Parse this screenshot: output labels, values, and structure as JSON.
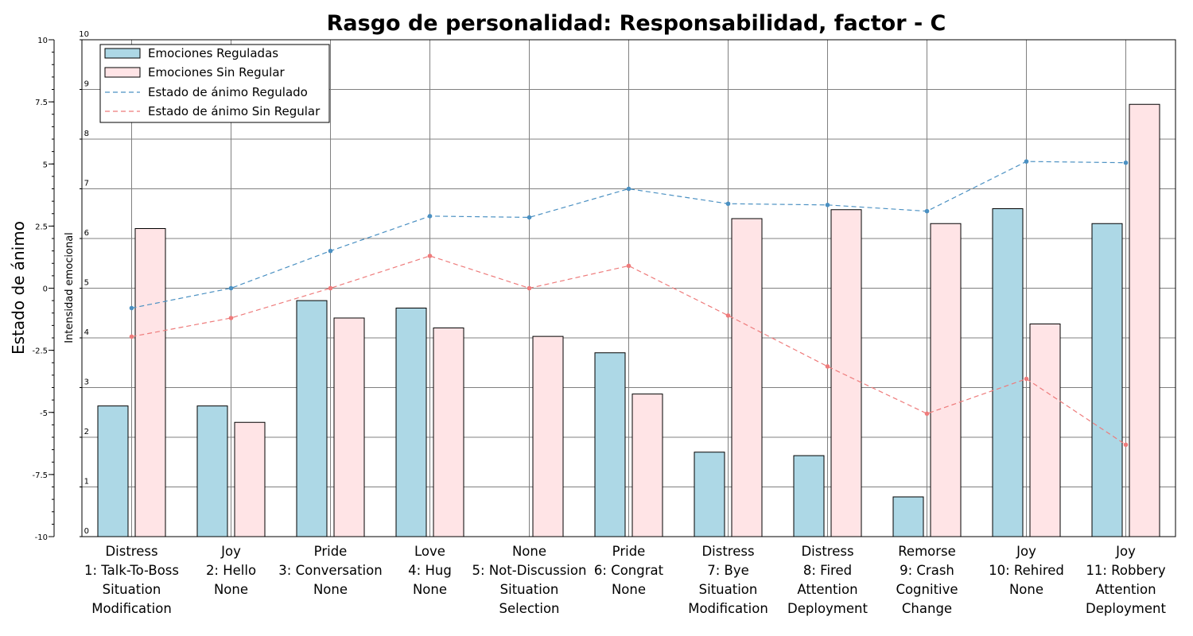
{
  "colors": {
    "regulated_bar": "#add8e6",
    "unregulated_bar": "#ffe4e6",
    "regulated_line": "#4a90c2",
    "unregulated_line": "#ee7b7b",
    "grid": "#808080"
  },
  "chart_data": {
    "type": "bar",
    "title": "Rasgo de personalidad: Responsabilidad, factor - C",
    "ylabel_left": "Estado de ánimo",
    "ylabel_right": "Intensidad emocional",
    "ylim_mood": [
      -10,
      10
    ],
    "ylim_intensity": [
      0,
      10
    ],
    "mood_ticks": [
      "10",
      "7.5",
      "5",
      "2.5",
      "0",
      "-2.5",
      "-5",
      "-7.5",
      "-10"
    ],
    "intensity_ticks": [
      "10",
      "9",
      "8",
      "7",
      "6",
      "5",
      "4",
      "3",
      "2",
      "1",
      "0"
    ],
    "grid": true,
    "legend_position": "top-left",
    "categories": [
      [
        "Distress",
        "1: Talk-To-Boss",
        "Situation",
        "Modification"
      ],
      [
        "Joy",
        "2: Hello",
        "None"
      ],
      [
        "Pride",
        "3: Conversation",
        "None"
      ],
      [
        "Love",
        "4: Hug",
        "None"
      ],
      [
        "None",
        "5: Not-Discussion",
        "Situation",
        "Selection"
      ],
      [
        "Pride",
        "6: Congrat",
        "None"
      ],
      [
        "Distress",
        "7: Bye",
        "Situation",
        "Modification"
      ],
      [
        "Distress",
        "8: Fired",
        "Attention",
        "Deployment"
      ],
      [
        "Remorse",
        "9: Crash",
        "Cognitive",
        "Change"
      ],
      [
        "Joy",
        "10: Rehired",
        "None"
      ],
      [
        "Joy",
        "11: Robbery",
        "Attention",
        "Deployment"
      ]
    ],
    "legend": [
      "Emociones Reguladas",
      "Emociones Sin Regular",
      "Estado de ánimo Regulado",
      "Estado de ánimo Sin Regular"
    ],
    "bar_series": [
      {
        "name": "Emociones Reguladas",
        "values": [
          2.63,
          2.63,
          4.75,
          4.6,
          0,
          3.7,
          1.7,
          1.63,
          0.8,
          6.6,
          6.3
        ]
      },
      {
        "name": "Emociones Sin Regular",
        "values": [
          6.2,
          2.3,
          4.4,
          4.2,
          4.03,
          2.87,
          6.4,
          6.58,
          6.3,
          4.28,
          8.7
        ]
      }
    ],
    "line_series": [
      {
        "name": "Estado de ánimo Regulado",
        "values": [
          -0.8,
          0.0,
          1.5,
          2.9,
          2.85,
          4.0,
          3.4,
          3.35,
          3.1,
          5.1,
          5.05
        ]
      },
      {
        "name": "Estado de ánimo Sin Regular",
        "values": [
          -1.95,
          -1.2,
          0.0,
          1.3,
          0.0,
          0.9,
          -1.1,
          -3.15,
          -5.05,
          -3.65,
          -6.3
        ]
      }
    ]
  }
}
